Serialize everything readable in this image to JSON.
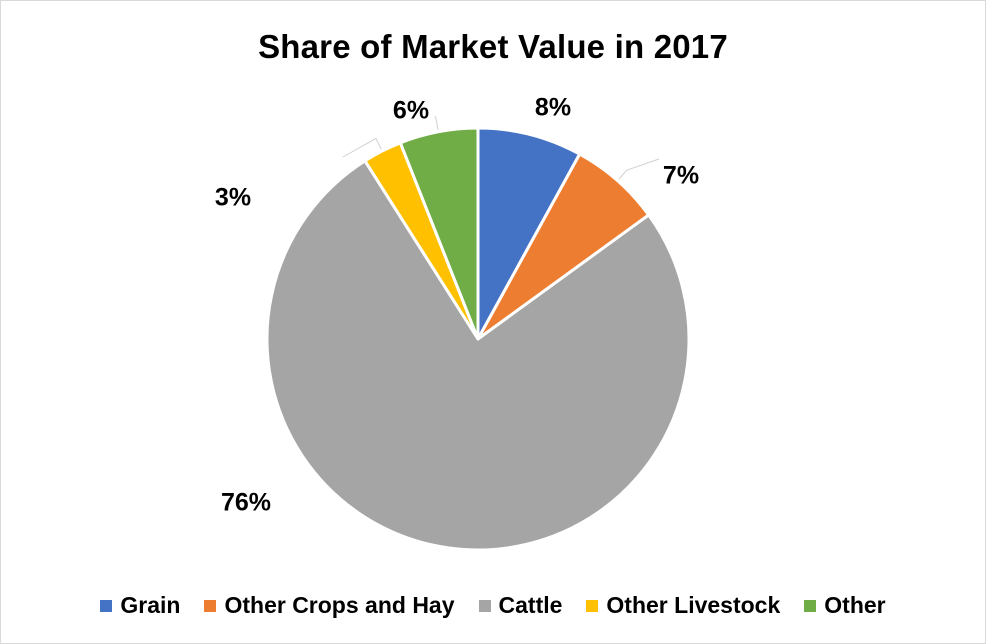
{
  "chart_data": {
    "type": "pie",
    "title": "Share of Market Value in 2017",
    "categories": [
      "Grain",
      "Other Crops and Hay",
      "Cattle",
      "Other Livestock",
      "Other"
    ],
    "values": [
      8,
      7,
      76,
      3,
      6
    ],
    "data_labels": [
      "8%",
      "7%",
      "76%",
      "3%",
      "6%"
    ],
    "colors": [
      "#4472C4",
      "#ED7D31",
      "#A5A5A5",
      "#FFC000",
      "#70AD47"
    ],
    "legend_position": "bottom"
  }
}
